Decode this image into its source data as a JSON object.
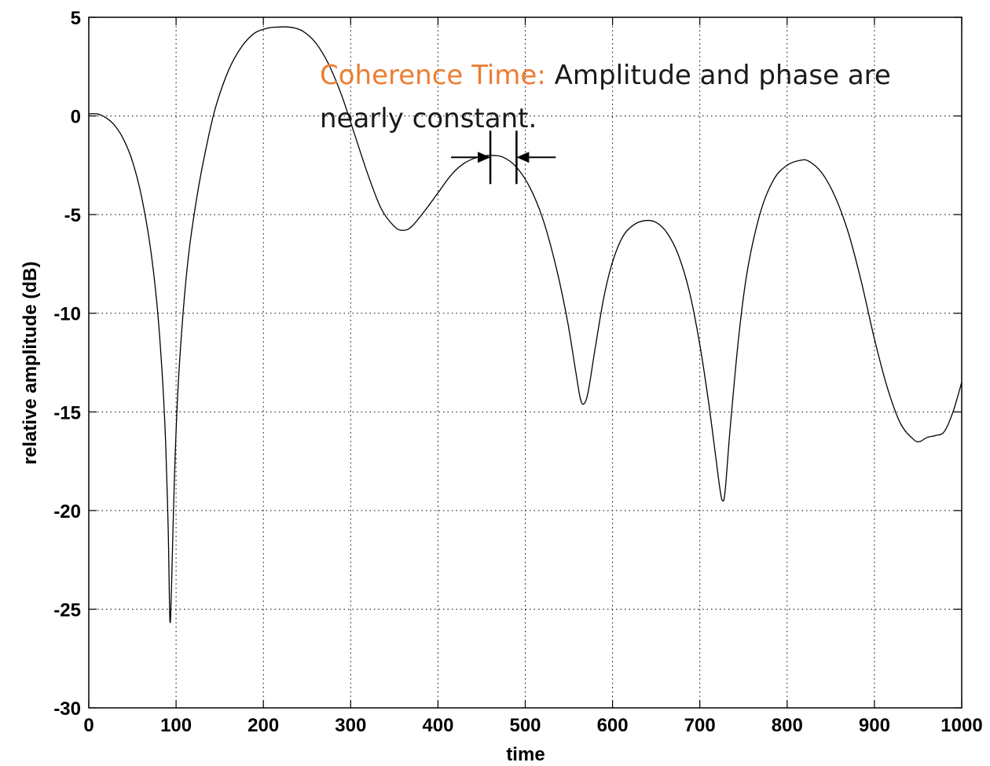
{
  "chart_data": {
    "type": "line",
    "title": "",
    "xlabel": "time",
    "ylabel": "relative amplitude (dB)",
    "xlim": [
      0,
      1000
    ],
    "ylim": [
      -30,
      5
    ],
    "x_ticks": [
      0,
      100,
      200,
      300,
      400,
      500,
      600,
      700,
      800,
      900,
      1000
    ],
    "y_ticks": [
      5,
      0,
      -5,
      -10,
      -15,
      -20,
      -25,
      -30
    ],
    "grid": true,
    "line_color": "#000000",
    "series": [
      {
        "name": "",
        "points": [
          [
            0,
            0.1
          ],
          [
            10,
            0.1
          ],
          [
            20,
            -0.1
          ],
          [
            30,
            -0.5
          ],
          [
            40,
            -1.2
          ],
          [
            50,
            -2.3
          ],
          [
            60,
            -4.0
          ],
          [
            70,
            -6.5
          ],
          [
            78,
            -9.5
          ],
          [
            84,
            -13.0
          ],
          [
            88,
            -16.5
          ],
          [
            91,
            -21.0
          ],
          [
            93,
            -25.6
          ],
          [
            95,
            -23.5
          ],
          [
            98,
            -18.5
          ],
          [
            102,
            -14.0
          ],
          [
            108,
            -10.0
          ],
          [
            115,
            -6.8
          ],
          [
            125,
            -3.8
          ],
          [
            135,
            -1.5
          ],
          [
            145,
            0.4
          ],
          [
            160,
            2.3
          ],
          [
            175,
            3.5
          ],
          [
            190,
            4.2
          ],
          [
            205,
            4.45
          ],
          [
            215,
            4.5
          ],
          [
            230,
            4.5
          ],
          [
            245,
            4.3
          ],
          [
            260,
            3.7
          ],
          [
            275,
            2.6
          ],
          [
            290,
            1.0
          ],
          [
            305,
            -1.0
          ],
          [
            320,
            -3.0
          ],
          [
            335,
            -4.7
          ],
          [
            350,
            -5.6
          ],
          [
            360,
            -5.8
          ],
          [
            370,
            -5.6
          ],
          [
            385,
            -4.8
          ],
          [
            400,
            -3.9
          ],
          [
            415,
            -3.0
          ],
          [
            430,
            -2.4
          ],
          [
            445,
            -2.1
          ],
          [
            460,
            -2.0
          ],
          [
            475,
            -2.1
          ],
          [
            490,
            -2.6
          ],
          [
            505,
            -3.6
          ],
          [
            520,
            -5.2
          ],
          [
            535,
            -7.6
          ],
          [
            548,
            -10.3
          ],
          [
            558,
            -13.0
          ],
          [
            563,
            -14.3
          ],
          [
            567,
            -14.6
          ],
          [
            572,
            -14.0
          ],
          [
            580,
            -11.8
          ],
          [
            590,
            -9.2
          ],
          [
            600,
            -7.4
          ],
          [
            612,
            -6.1
          ],
          [
            625,
            -5.5
          ],
          [
            638,
            -5.3
          ],
          [
            650,
            -5.4
          ],
          [
            662,
            -5.9
          ],
          [
            675,
            -7.0
          ],
          [
            688,
            -8.9
          ],
          [
            700,
            -11.6
          ],
          [
            710,
            -14.5
          ],
          [
            718,
            -17.2
          ],
          [
            723,
            -18.9
          ],
          [
            726,
            -19.5
          ],
          [
            729,
            -19.0
          ],
          [
            735,
            -15.7
          ],
          [
            745,
            -11.0
          ],
          [
            755,
            -7.7
          ],
          [
            770,
            -4.8
          ],
          [
            785,
            -3.2
          ],
          [
            800,
            -2.5
          ],
          [
            815,
            -2.25
          ],
          [
            825,
            -2.3
          ],
          [
            840,
            -2.9
          ],
          [
            855,
            -4.1
          ],
          [
            870,
            -5.9
          ],
          [
            885,
            -8.4
          ],
          [
            900,
            -11.3
          ],
          [
            915,
            -13.8
          ],
          [
            930,
            -15.6
          ],
          [
            945,
            -16.4
          ],
          [
            952,
            -16.5
          ],
          [
            960,
            -16.3
          ],
          [
            970,
            -16.2
          ],
          [
            980,
            -16.0
          ],
          [
            990,
            -15.0
          ],
          [
            1000,
            -13.5
          ]
        ]
      }
    ],
    "annotations": [
      {
        "label": "Coherence Time:",
        "label_color": "#ED7D31",
        "text_line1": " Amplitude and phase are",
        "text_line2": "nearly constant.",
        "text_color": "#1a1a1a"
      }
    ],
    "interval_marker": {
      "x_start": 460,
      "x_end": 490,
      "y": -2.1,
      "arrow_from_left": 415,
      "arrow_from_right": 535,
      "bar_half_height": 1.35
    }
  }
}
